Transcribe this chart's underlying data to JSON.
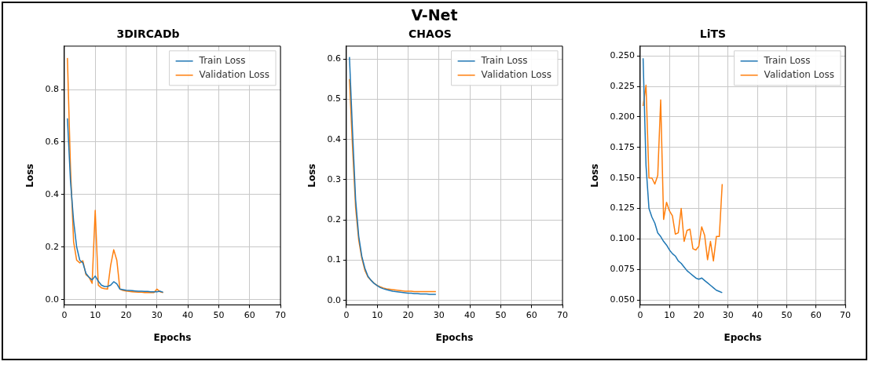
{
  "chart_data": [
    {
      "type": "other",
      "title": "V-Net"
    },
    {
      "type": "line",
      "title": "3DIRCADb",
      "xlabel": "Epochs",
      "ylabel": "Loss",
      "x": [
        1,
        2,
        3,
        4,
        5,
        6,
        7,
        8,
        9,
        10,
        11,
        12,
        13,
        14,
        15,
        16,
        17,
        18,
        19,
        20,
        21,
        22,
        23,
        24,
        25,
        26,
        27,
        28,
        29,
        30,
        31,
        32
      ],
      "series": [
        {
          "name": "Train Loss",
          "color": "#1f77b4",
          "values": [
            0.69,
            0.45,
            0.3,
            0.2,
            0.15,
            0.14,
            0.1,
            0.085,
            0.075,
            0.09,
            0.07,
            0.055,
            0.05,
            0.05,
            0.055,
            0.068,
            0.06,
            0.04,
            0.038,
            0.036,
            0.035,
            0.034,
            0.033,
            0.032,
            0.032,
            0.031,
            0.031,
            0.03,
            0.03,
            0.03,
            0.032,
            0.028
          ]
        },
        {
          "name": "Validation Loss",
          "color": "#ff7f0e",
          "values": [
            0.92,
            0.5,
            0.22,
            0.15,
            0.14,
            0.148,
            0.095,
            0.085,
            0.062,
            0.34,
            0.055,
            0.045,
            0.042,
            0.04,
            0.13,
            0.19,
            0.15,
            0.04,
            0.035,
            0.033,
            0.031,
            0.03,
            0.029,
            0.028,
            0.028,
            0.027,
            0.027,
            0.027,
            0.027,
            0.04,
            0.03,
            0.027
          ]
        }
      ],
      "xlim": [
        0,
        70
      ],
      "ylim": [
        -0.02,
        0.965
      ],
      "xticks": [
        0,
        10,
        20,
        30,
        40,
        50,
        60,
        70
      ],
      "yticks": [
        {
          "value": 0,
          "label": "0.0"
        },
        {
          "value": 0.2,
          "label": "0.2"
        },
        {
          "value": 0.4,
          "label": "0.4"
        },
        {
          "value": 0.6,
          "label": "0.6"
        },
        {
          "value": 0.8,
          "label": "0.8"
        }
      ],
      "grid": true,
      "legend": "top right",
      "marker": "none",
      "line_style": "solid"
    },
    {
      "type": "line",
      "title": "CHAOS",
      "xlabel": "Epochs",
      "ylabel": "Loss",
      "x": [
        1,
        2,
        3,
        4,
        5,
        6,
        7,
        8,
        9,
        10,
        11,
        12,
        13,
        14,
        15,
        16,
        17,
        18,
        19,
        20,
        21,
        22,
        23,
        24,
        25,
        26,
        27,
        28,
        29
      ],
      "series": [
        {
          "name": "Train Loss",
          "color": "#1f77b4",
          "values": [
            0.605,
            0.42,
            0.25,
            0.16,
            0.11,
            0.08,
            0.06,
            0.05,
            0.042,
            0.037,
            0.032,
            0.029,
            0.027,
            0.025,
            0.023,
            0.022,
            0.021,
            0.02,
            0.019,
            0.018,
            0.018,
            0.017,
            0.017,
            0.016,
            0.016,
            0.016,
            0.015,
            0.015,
            0.015
          ]
        },
        {
          "name": "Validation Loss",
          "color": "#ff7f0e",
          "values": [
            0.55,
            0.38,
            0.23,
            0.15,
            0.105,
            0.075,
            0.058,
            0.05,
            0.043,
            0.037,
            0.034,
            0.031,
            0.029,
            0.028,
            0.027,
            0.026,
            0.025,
            0.024,
            0.023,
            0.023,
            0.023,
            0.022,
            0.022,
            0.022,
            0.022,
            0.022,
            0.022,
            0.022,
            0.022
          ]
        }
      ],
      "xlim": [
        0,
        70
      ],
      "ylim": [
        -0.011,
        0.632
      ],
      "xticks": [
        0,
        10,
        20,
        30,
        40,
        50,
        60,
        70
      ],
      "yticks": [
        {
          "value": 0,
          "label": "0.0"
        },
        {
          "value": 0.1,
          "label": "0.1"
        },
        {
          "value": 0.2,
          "label": "0.2"
        },
        {
          "value": 0.3,
          "label": "0.3"
        },
        {
          "value": 0.4,
          "label": "0.4"
        },
        {
          "value": 0.5,
          "label": "0.5"
        },
        {
          "value": 0.6,
          "label": "0.6"
        }
      ],
      "grid": true,
      "legend": "top right",
      "marker": "none",
      "line_style": "solid"
    },
    {
      "type": "line",
      "title": "LiTS",
      "xlabel": "Epochs",
      "ylabel": "Loss",
      "x": [
        1,
        2,
        3,
        4,
        5,
        6,
        7,
        8,
        9,
        10,
        11,
        12,
        13,
        14,
        15,
        16,
        17,
        18,
        19,
        20,
        21,
        22,
        23,
        24,
        25,
        26,
        27,
        28
      ],
      "series": [
        {
          "name": "Train Loss",
          "color": "#1f77b4",
          "values": [
            0.248,
            0.16,
            0.125,
            0.118,
            0.113,
            0.105,
            0.102,
            0.098,
            0.095,
            0.091,
            0.088,
            0.086,
            0.082,
            0.08,
            0.077,
            0.074,
            0.072,
            0.07,
            0.068,
            0.067,
            0.068,
            0.066,
            0.064,
            0.062,
            0.06,
            0.058,
            0.057,
            0.056
          ]
        },
        {
          "name": "Validation Loss",
          "color": "#ff7f0e",
          "values": [
            0.209,
            0.226,
            0.15,
            0.15,
            0.145,
            0.152,
            0.214,
            0.116,
            0.13,
            0.123,
            0.119,
            0.104,
            0.105,
            0.125,
            0.098,
            0.107,
            0.108,
            0.092,
            0.091,
            0.094,
            0.11,
            0.103,
            0.083,
            0.098,
            0.082,
            0.102,
            0.102,
            0.145
          ]
        }
      ],
      "xlim": [
        0,
        70
      ],
      "ylim": [
        0.046,
        0.258
      ],
      "xticks": [
        0,
        10,
        20,
        30,
        40,
        50,
        60,
        70
      ],
      "yticks": [
        {
          "value": 0.05,
          "label": "0.050"
        },
        {
          "value": 0.075,
          "label": "0.075"
        },
        {
          "value": 0.1,
          "label": "0.100"
        },
        {
          "value": 0.125,
          "label": "0.125"
        },
        {
          "value": 0.15,
          "label": "0.150"
        },
        {
          "value": 0.175,
          "label": "0.175"
        },
        {
          "value": 0.2,
          "label": "0.200"
        },
        {
          "value": 0.225,
          "label": "0.225"
        },
        {
          "value": 0.25,
          "label": "0.250"
        }
      ],
      "grid": true,
      "legend": "top right",
      "marker": "none",
      "line_style": "solid"
    }
  ]
}
